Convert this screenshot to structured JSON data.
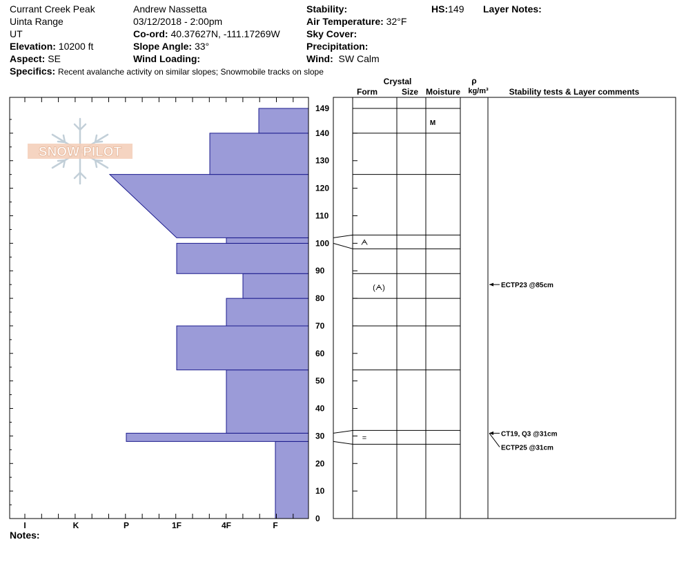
{
  "header": {
    "location": "Currant Creek Peak",
    "range": "Uinta Range",
    "state": "UT",
    "elevation_label": "Elevation:",
    "elevation": "10200 ft",
    "aspect_label": "Aspect:",
    "aspect": "SE",
    "observer": "Andrew Nassetta",
    "datetime": "03/12/2018 - 2:00pm",
    "coord_label": "Co-ord:",
    "coord": "40.37627N, -111.17269W",
    "slope_label": "Slope Angle:",
    "slope": "33°",
    "wind_loading_label": "Wind Loading:",
    "wind_loading": "",
    "stability_label": "Stability:",
    "stability": "",
    "air_temp_label": "Air Temperature:",
    "air_temp": "32°F",
    "sky_label": "Sky Cover:",
    "sky": "",
    "precip_label": "Precipitation:",
    "precip": "",
    "wind_label": "Wind:",
    "wind": "SW Calm",
    "hs_label": "HS:",
    "hs": "149",
    "layer_notes_label": "Layer Notes:",
    "specifics_label": "Specifics:",
    "specifics": "Recent avalanche activity on similar slopes; Snowmobile tracks on slope",
    "notes_label": "Notes:"
  },
  "logo_text": "SNOW PILOT",
  "columns": {
    "crystal": "Crystal",
    "form": "Form",
    "size": "Size",
    "moisture": "Moisture",
    "rho": "ρ",
    "density_unit": "kg/m³",
    "stability_comments": "Stability tests & Layer comments"
  },
  "chart_data": {
    "type": "bar",
    "description_axis": "hardness profile (horizontal bars) vs snow height",
    "y_axis": {
      "unit": "cm",
      "range": [
        0,
        149
      ],
      "ticks": [
        0,
        10,
        20,
        30,
        40,
        50,
        60,
        70,
        80,
        90,
        100,
        110,
        120,
        130,
        140,
        149
      ]
    },
    "x_axis": {
      "categories": [
        "I",
        "K",
        "P",
        "1F",
        "4F",
        "F"
      ]
    },
    "layers": [
      {
        "bottom": 0,
        "top": 28,
        "hardness": "F"
      },
      {
        "bottom": 28,
        "top": 31,
        "hardness": "P"
      },
      {
        "bottom": 31,
        "top": 54,
        "hardness": "4F"
      },
      {
        "bottom": 54,
        "top": 70,
        "hardness": "1F"
      },
      {
        "bottom": 70,
        "top": 80,
        "hardness": "4F"
      },
      {
        "bottom": 80,
        "top": 89,
        "hardness": "4F-"
      },
      {
        "bottom": 89,
        "top": 100,
        "hardness": "1F"
      },
      {
        "bottom": 100,
        "top": 102,
        "hardness": "4F"
      },
      {
        "bottom": 102,
        "top": 125,
        "hardness": "1F to P",
        "hardness_bottom": "1F",
        "hardness_top": "P+"
      },
      {
        "bottom": 125,
        "top": 140,
        "hardness": "4F+"
      },
      {
        "bottom": 140,
        "top": 149,
        "hardness": "F+"
      }
    ],
    "layer_boundaries": [
      27,
      32,
      54,
      70,
      80,
      89,
      98,
      103,
      125,
      140,
      149
    ],
    "grain_forms": [
      {
        "height": 100.5,
        "symbol": "ᗅ"
      },
      {
        "height": 84,
        "symbol": "(ᗅ)"
      },
      {
        "height": 29.5,
        "symbol": "="
      }
    ],
    "moisture": [
      {
        "height": 144,
        "value": "M"
      }
    ],
    "stability_tests": [
      {
        "height": 85,
        "text": "ECTP23 @85cm"
      },
      {
        "height": 31,
        "text": "CT19, Q3 @31cm"
      },
      {
        "height": 31,
        "text": "ECTP25 @31cm"
      }
    ]
  }
}
